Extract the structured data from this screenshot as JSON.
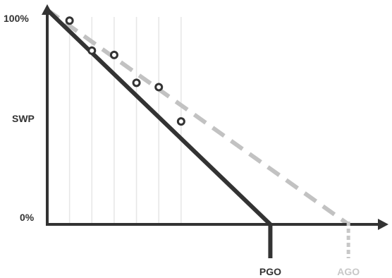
{
  "chart_data": {
    "type": "line",
    "title": "",
    "xlabel": "",
    "ylabel": "SWP",
    "ylim": [
      0,
      100
    ],
    "yticks": [
      "0%",
      "100%"
    ],
    "xlim": [
      0,
      140
    ],
    "grid": "vertical",
    "legend": "none",
    "series": [
      {
        "style": "solid",
        "color": "#333333",
        "x": [
          0,
          100
        ],
        "y": [
          100,
          0
        ]
      },
      {
        "style": "dashed",
        "color": "#c2c2c2",
        "x": [
          0,
          135
        ],
        "y": [
          100,
          0
        ]
      },
      {
        "style": "scatter",
        "color": "#333333",
        "x": [
          10,
          20,
          30,
          40,
          50,
          60
        ],
        "y": [
          95,
          81,
          79,
          66,
          64,
          48
        ]
      }
    ],
    "gridlines_x": [
      10,
      20,
      30,
      40,
      50,
      60
    ],
    "markers": [
      {
        "label": "PGO",
        "x": 100,
        "color": "#333333"
      },
      {
        "label": "AGO",
        "x": 135,
        "color": "#c8c8c8"
      }
    ]
  }
}
